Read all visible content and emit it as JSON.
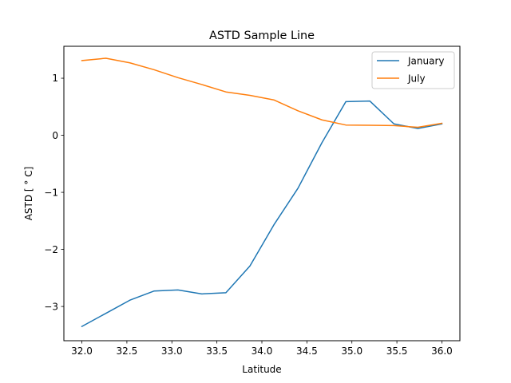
{
  "chart_data": {
    "type": "line",
    "title": "ASTD Sample Line",
    "xlabel": "Latitude",
    "ylabel": "ASTD [$^\\circ$C]",
    "ylabel_display": "ASTD [ ° C]",
    "xlim": [
      31.8,
      36.2
    ],
    "ylim": [
      -3.6,
      1.56
    ],
    "xticks": [
      32.0,
      32.5,
      33.0,
      33.5,
      34.0,
      34.5,
      35.0,
      35.5,
      36.0
    ],
    "xtick_labels": [
      "32.0",
      "32.5",
      "33.0",
      "33.5",
      "34.0",
      "34.5",
      "35.0",
      "35.5",
      "36.0"
    ],
    "yticks": [
      -3,
      -2,
      -1,
      0,
      1
    ],
    "ytick_labels": [
      "−3",
      "−2",
      "−1",
      "0",
      "1"
    ],
    "grid": false,
    "legend_position": "upper right",
    "x": [
      32.0,
      32.267,
      32.533,
      32.8,
      33.067,
      33.333,
      33.6,
      33.867,
      34.133,
      34.4,
      34.667,
      34.933,
      35.2,
      35.467,
      35.733,
      36.0
    ],
    "series": [
      {
        "name": "January",
        "color": "#1f77b4",
        "values": [
          -3.35,
          -3.12,
          -2.89,
          -2.73,
          -2.71,
          -2.78,
          -2.76,
          -2.29,
          -1.57,
          -0.93,
          -0.13,
          0.59,
          0.6,
          0.2,
          0.12,
          0.2
        ]
      },
      {
        "name": "July",
        "color": "#ff7f0e",
        "values": [
          1.31,
          1.35,
          1.27,
          1.15,
          1.01,
          0.89,
          0.76,
          0.7,
          0.62,
          0.43,
          0.27,
          0.18,
          0.175,
          0.17,
          0.14,
          0.21
        ]
      }
    ]
  }
}
